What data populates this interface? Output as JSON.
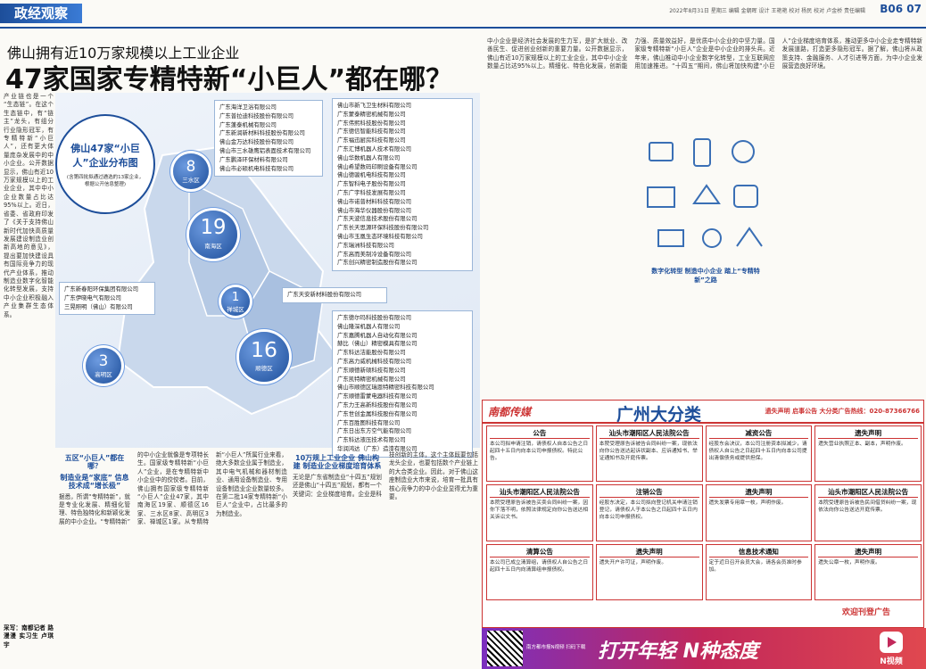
{
  "header": {
    "section": "政经观察",
    "dateline": "2022年8月31日 星期三 编辑 金朝晖 设计 王艳艳 校对 杨民 校对 卢金桥 责任编辑",
    "page": "B06 07"
  },
  "headline": {
    "kicker": "佛山拥有近10万家规模以上工业企业",
    "title": "47家国家专精特新“小巨人”都在哪？"
  },
  "map": {
    "title": "佛山47家“小巨人”企业分布图",
    "note": "(含第四批拟通过遴选的13家企业，根据公开信息整理)",
    "districts": [
      {
        "count": "8",
        "name": "三水区",
        "companies": [
          "广东海洋卫浴有限公司",
          "广东普拉迪科技股份有限公司",
          "广东蓬泰机械有限公司",
          "广东新润新材料科技股份有限公司",
          "佛山金万达科技股份有限公司",
          "佛山市三水雄鹰铝表面技术有限公司",
          "广东鹏泽环保材料有限公司",
          "佛山市必硕机电科技有限公司"
        ]
      },
      {
        "count": "19",
        "name": "南海区",
        "companies": [
          "佛山市新飞卫生材料有限公司",
          "广东蒙泰精密机械有限公司",
          "广东伟熙科技股份有限公司",
          "广东德信智能科技有限公司",
          "广东福迅厨房科技有限公司",
          "广东汇博机器人技术有限公司",
          "佛山华数机器人有限公司",
          "佛山希望数码印刷设备有限公司",
          "佛山德骏机电科技有限公司",
          "广东智科电子股份有限公司",
          "广东广宇科技发展有限公司",
          "佛山市诺普材料科技有限公司",
          "佛山市海华仪器股份有限公司",
          "广东天波信息技术股份有限公司",
          "广东长天思源环保科技股份有限公司",
          "佛山市玉凰生态环境科技有限公司",
          "广东瑞洲科技有限公司",
          "广东高而美制冷设备有限公司",
          "广东创兴精密制造股份有限公司"
        ]
      },
      {
        "count": "1",
        "name": "禅城区",
        "companies": [
          "广东天安新材料股份有限公司"
        ]
      },
      {
        "count": "16",
        "name": "顺德区",
        "companies": [
          "广东德尔玛科技股份有限公司",
          "佛山隆深机器人有限公司",
          "广东嘉腾机器人自动化有限公司",
          "赫比（佛山）精密模具有限公司",
          "广东科达洁能股份有限公司",
          "广东高力威机械科技有限公司",
          "广东顺德新硕科技有限公司",
          "广东凯特精密机械有限公司",
          "佛山市顺德区瑞恩特精密科技有限公司",
          "广东顺德雷蒙电器科技有限公司",
          "广东力王高新科技股份有限公司",
          "广东世创金属科技股份有限公司",
          "广东百胜图科技有限公司",
          "广东日出东方空气能有限公司",
          "广东科达液压技术有限公司",
          "华润鸿达（广东）造漆有限公司"
        ]
      },
      {
        "count": "3",
        "name": "高明区",
        "companies": [
          "广东新春阳环保集团有限公司",
          "广东伊晓电气有限公司",
          "三晃照明（佛山）有限公司"
        ]
      }
    ]
  },
  "articles": {
    "left": "产业链也是一个“生态链”。在这个生态链中，有“链主”龙头，有组分行业隐形冠军，有专精特新“小巨人”，还有更大体量庞杂发展中的中小企业。公开数据显示，佛山有近10万家规模以上的工业企业，其中中小企业数量占比达95%以上。近日，省委、省政府印发了《关于支持佛山新时代加快高质量发展建设制造业创新高地的意见》，提出要加快建设具有国际竞争力的现代产业体系，推动制造业数字化智能化转型发展，支持中小企业积极融入产业集群生态体系。",
    "left_byline": "采写：南都记者 路漫漫 实习生 卢琪宇",
    "mid_head1": "五区“小巨人”都在哪？",
    "mid_head2": "制造业是“家底” 信息技术成“增长极”",
    "mid": "据悉，所谓“专精特新”，就是专业化发展、精细化管理、特色独特化和新颖化发展的中小企业。“专精特新”的中小企业就像是专项特长生。国家级专精特新“小巨人”企业，是在专精特新中小企业中的佼佼者。目前，佛山拥有国家级专精特新“小巨人”企业47家，其中南海区19家、顺德区16家、三水区8家、高明区3家、禅城区1家。从专精特新“小巨人”所属行业来看，绝大多数企业属于制造业，其中电气机械和器材制造业、通用设备制造业、专用设备制造业企业数量较多。在第二批14家专精特新“小巨人”企业中，占比最多的为制造业。",
    "mid_head3": "10万规上工业企业 佛山构建 制造业企业梯度培育体系",
    "mid2": "无论是广东省制造业“十四五”规划还是佛山“十四五”规划，都有一个关键词：企业梯度培育。企业是科技创新的主体，这个主体既要包括龙头企业，也要包括数个产业链上的大合类企业。因此，对于佛山这座制造业大市来说，培育一批具有核心竞争力的中小企业显得尤为重要。",
    "right_head": "数字化转型 制造中小企业 踏上“专精特新”之路",
    "right": "中小企业是经济社会发展的生力军，是扩大就业、改善民生、促进创业创新的重要力量。公开数据显示，佛山有近10万家规模以上的工业企业，其中中小企业数量占比达95%以上。精细化、特色化发展，创新能力强、质量效益好，是优质中小企业的中坚力量。国家级专精特新“小巨人”企业是中小企业的排头兵。近年来，佛山推动中小企业数字化转型，工业互联网应用加速推进。“十四五”期间，佛山将加快构建“小巨人”企业梯度培育体系，推动更多中小企业走专精特新发展道路，打造更多隐形冠军。据了解，佛山将从政策支持、金融服务、人才引进等方面，为中小企业发展营造良好环境。"
  },
  "ad": {
    "brand": "南都传媒",
    "title": "广州大分类",
    "hotline": "遗失声明 启事公告  大分类广告热线：020-87366766",
    "notices": [
      {
        "title": "公告",
        "body": "本公司拟申请注销，请债权人自本公告之日起四十五日内向本公司申报债权。特此公告。"
      },
      {
        "title": "汕头市潮阳区人民法院公告",
        "body": "本院受理原告诉被告合同纠纷一案，现依法向你公告送达起诉状副本、应诉通知书、举证通知书及开庭传票。"
      },
      {
        "title": "减资公告",
        "body": "经股东会决议，本公司注册资本拟减少，请债权人自公告之日起四十五日内向本公司提出清偿债务或提供担保。"
      },
      {
        "title": "遗失声明",
        "body": "遗失营业执照正本、副本，声明作废。"
      },
      {
        "title": "汕头市潮阳区人民法院公告",
        "body": "本院受理原告诉被告买卖合同纠纷一案，因你下落不明，依照法律规定向你公告送达相关诉讼文书。"
      },
      {
        "title": "注销公告",
        "body": "经股东决定，本公司拟向登记机关申请注销登记，请债权人于本公告之日起四十五日内向本公司申报债权。"
      },
      {
        "title": "遗失声明",
        "body": "遗失发票专用章一枚，声明作废。"
      },
      {
        "title": "汕头市潮阳区人民法院公告",
        "body": "本院受理原告诉被告民间借贷纠纷一案，现依法向你公告送达开庭传票。"
      },
      {
        "title": "清算公告",
        "body": "本公司已成立清算组，请债权人自公告之日起四十五日内向清算组申报债权。"
      },
      {
        "title": "遗失声明",
        "body": "遗失开户许可证，声明作废。"
      },
      {
        "title": "信息技术通知",
        "body": "定于近日召开会员大会，请各会员准时参加。"
      },
      {
        "title": "遗失声明",
        "body": "遗失公章一枚，声明作废。"
      }
    ],
    "welcome": "欢迎刊登广告"
  },
  "banner": {
    "slogan": "打开年轻 N种态度",
    "app": "N视频",
    "qr_caption": "南方都市报N视频 扫码下载"
  }
}
